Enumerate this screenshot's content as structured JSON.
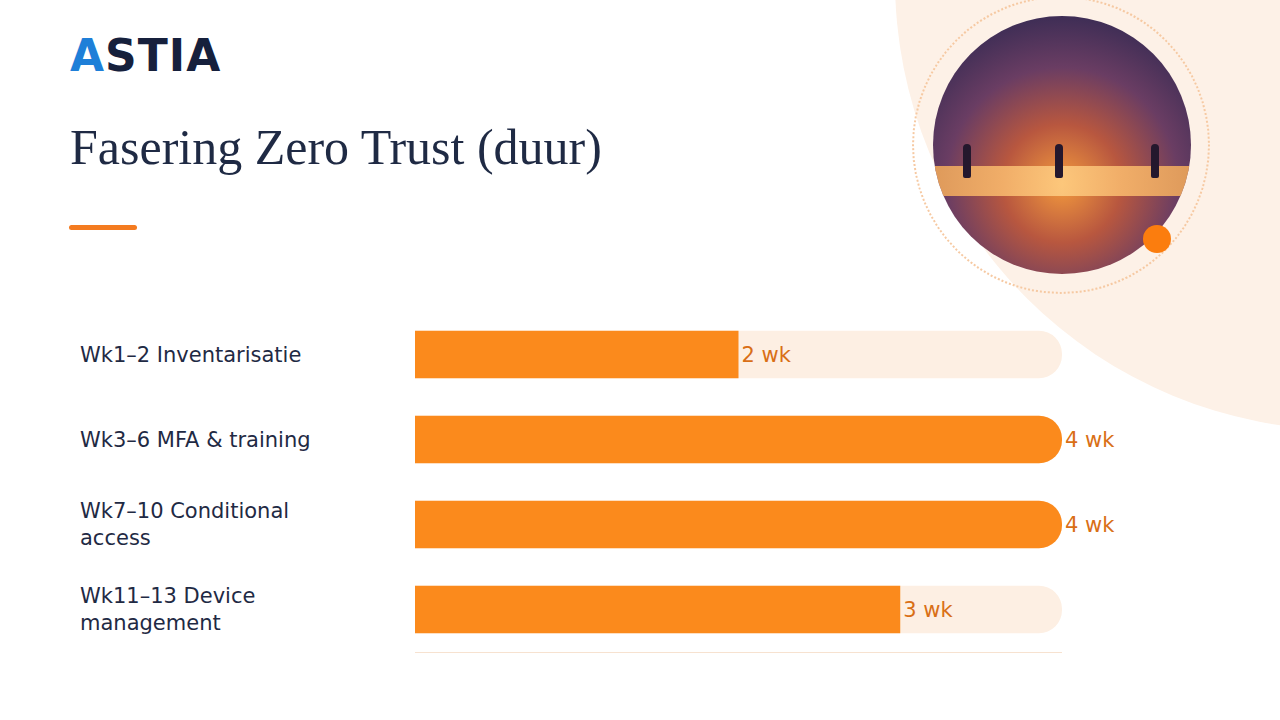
{
  "logo": "ASTIA",
  "chart_data": {
    "type": "bar",
    "orientation": "horizontal",
    "title": "Fasering Zero Trust (duur)",
    "categories": [
      "Wk1–2 Inventarisatie",
      "Wk3–6 MFA & training",
      "Wk7–10 Conditional access",
      "Wk11–13 Device management"
    ],
    "values": [
      2,
      4,
      4,
      3
    ],
    "value_labels": [
      "2 wk",
      "4 wk",
      "4 wk",
      "3 wk"
    ],
    "color": "#fb8a1c",
    "xlim": [
      0,
      4
    ],
    "data_labels": true,
    "tick_labels": "y",
    "grid": false
  }
}
